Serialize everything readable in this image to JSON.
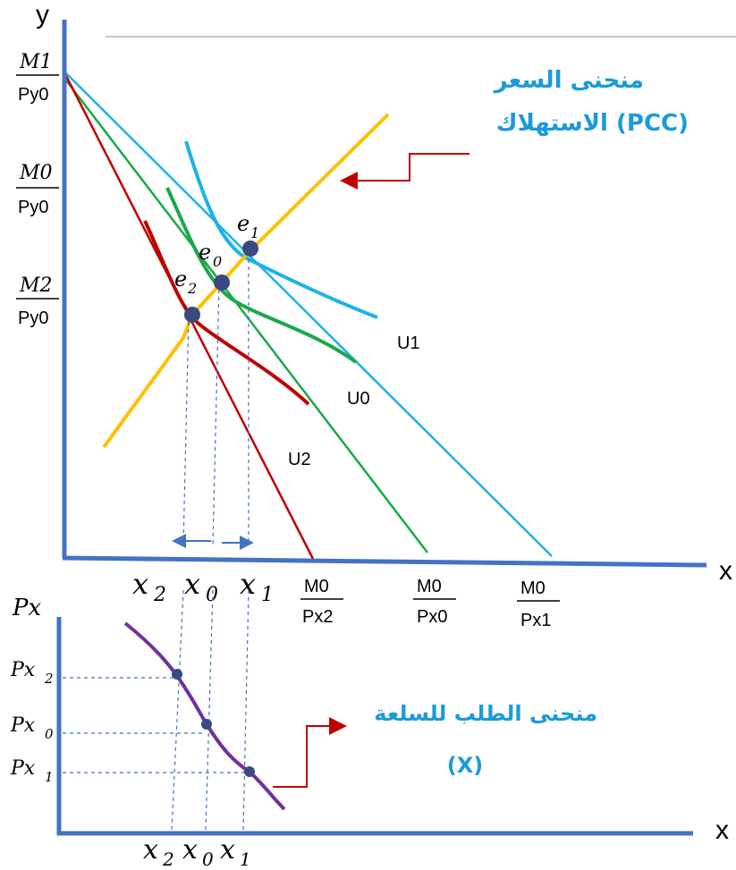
{
  "top_chart": {
    "y_axis_label": "y",
    "x_axis_label": "x",
    "y_intercepts": [
      {
        "num": "M1",
        "den": "Py0"
      },
      {
        "num": "M0",
        "den": "Py0"
      },
      {
        "num": "M2",
        "den": "Py0"
      }
    ],
    "x_intercepts": [
      {
        "num": "M0",
        "den": "Px2"
      },
      {
        "num": "M0",
        "den": "Px0"
      },
      {
        "num": "M0",
        "den": "Px1"
      }
    ],
    "indifference_labels": [
      "U1",
      "U0",
      "U2"
    ],
    "equilibrium_labels": [
      {
        "base": "e",
        "sub": "1"
      },
      {
        "base": "e",
        "sub": "0"
      },
      {
        "base": "e",
        "sub": "2"
      }
    ],
    "quantity_labels": [
      {
        "base": "x",
        "sub": "2"
      },
      {
        "base": "x",
        "sub": "0"
      },
      {
        "base": "x",
        "sub": "1"
      }
    ],
    "pcc_label": {
      "line1": "منحنى السعر",
      "line2": "الاستهلاك (PCC)"
    }
  },
  "bottom_chart": {
    "y_axis_label": "Px",
    "x_axis_label": "x",
    "price_labels": [
      {
        "base": "Px",
        "sub": "2"
      },
      {
        "base": "Px",
        "sub": "0"
      },
      {
        "base": "Px",
        "sub": "1"
      }
    ],
    "quantity_labels": [
      {
        "base": "x",
        "sub": "2"
      },
      {
        "base": "x",
        "sub": "0"
      },
      {
        "base": "x",
        "sub": "1"
      }
    ],
    "demand_label": {
      "line1": "منحنى الطلب للسلعة",
      "line2": "(X)"
    }
  },
  "colors": {
    "axis": "#4472c4",
    "budget_light": "#1bb3e8",
    "budget_green": "#1aa84a",
    "budget_red": "#c00000",
    "pcc": "#ffc000",
    "demand": "#7030a0",
    "dot": "#3a4a80",
    "arabic": "#1b9bd7",
    "arrow_red": "#c00000"
  }
}
